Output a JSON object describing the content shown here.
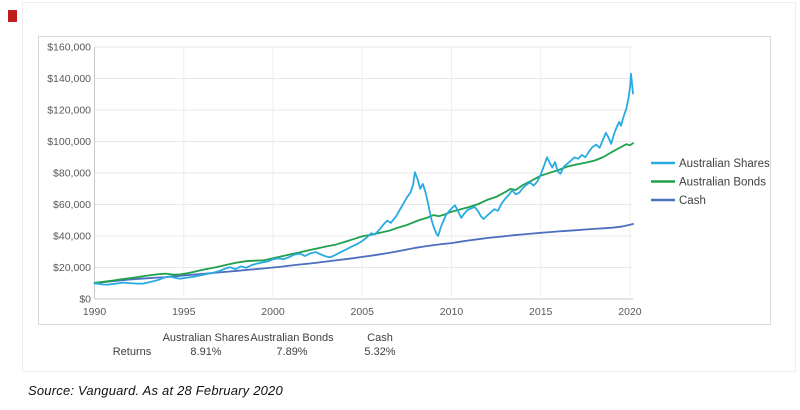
{
  "page": {
    "source_note": "Source: Vanguard. As at 28 February 2020"
  },
  "returns_table": {
    "row_label": "Returns",
    "columns": [
      {
        "label": "Australian Shares",
        "value": "8.91%"
      },
      {
        "label": "Australian Bonds",
        "value": "7.89%"
      },
      {
        "label": "Cash",
        "value": "5.32%"
      }
    ]
  },
  "chart_data": {
    "type": "line",
    "title": "",
    "xlabel": "",
    "ylabel": "",
    "xlim": [
      1990,
      2020.17
    ],
    "ylim": [
      0,
      160000
    ],
    "grid": true,
    "legend_position": "right",
    "x_ticks": [
      1990,
      1995,
      2000,
      2005,
      2010,
      2015,
      2020
    ],
    "y_ticks": [
      [
        0,
        "$0"
      ],
      [
        20000,
        "$20,000"
      ],
      [
        40000,
        "$40,000"
      ],
      [
        60000,
        "$60,000"
      ],
      [
        80000,
        "$80,000"
      ],
      [
        100000,
        "$100,000"
      ],
      [
        120000,
        "$120,000"
      ],
      [
        140000,
        "$140,000"
      ],
      [
        160000,
        "$160,000"
      ]
    ],
    "series": [
      {
        "name": "Cash",
        "color": "#4c6fbf",
        "points": [
          [
            1990.0,
            10000
          ],
          [
            1990.5,
            10700
          ],
          [
            1991.0,
            11300
          ],
          [
            1991.5,
            11900
          ],
          [
            1992.0,
            12400
          ],
          [
            1992.5,
            12800
          ],
          [
            1993.0,
            13200
          ],
          [
            1993.5,
            13600
          ],
          [
            1994.0,
            13900
          ],
          [
            1994.5,
            14400
          ],
          [
            1995.0,
            14900
          ],
          [
            1995.5,
            15400
          ],
          [
            1996.0,
            15900
          ],
          [
            1996.5,
            16400
          ],
          [
            1997.0,
            16900
          ],
          [
            1997.5,
            17400
          ],
          [
            1998.0,
            17900
          ],
          [
            1998.5,
            18400
          ],
          [
            1999.0,
            18900
          ],
          [
            1999.5,
            19400
          ],
          [
            2000.0,
            20000
          ],
          [
            2000.5,
            20600
          ],
          [
            2001.0,
            21300
          ],
          [
            2001.5,
            21900
          ],
          [
            2002.0,
            22500
          ],
          [
            2002.5,
            23100
          ],
          [
            2003.0,
            23800
          ],
          [
            2003.5,
            24500
          ],
          [
            2004.0,
            25200
          ],
          [
            2004.5,
            25900
          ],
          [
            2005.0,
            26700
          ],
          [
            2005.5,
            27500
          ],
          [
            2006.0,
            28400
          ],
          [
            2006.5,
            29300
          ],
          [
            2007.0,
            30300
          ],
          [
            2007.5,
            31400
          ],
          [
            2008.0,
            32500
          ],
          [
            2008.5,
            33400
          ],
          [
            2009.0,
            34200
          ],
          [
            2009.5,
            34900
          ],
          [
            2010.0,
            35500
          ],
          [
            2010.5,
            36400
          ],
          [
            2011.0,
            37200
          ],
          [
            2011.5,
            38000
          ],
          [
            2012.0,
            38700
          ],
          [
            2012.5,
            39300
          ],
          [
            2013.0,
            39900
          ],
          [
            2013.5,
            40500
          ],
          [
            2014.0,
            41000
          ],
          [
            2014.5,
            41500
          ],
          [
            2015.0,
            42000
          ],
          [
            2015.5,
            42500
          ],
          [
            2016.0,
            42900
          ],
          [
            2016.5,
            43300
          ],
          [
            2017.0,
            43700
          ],
          [
            2017.5,
            44100
          ],
          [
            2018.0,
            44500
          ],
          [
            2018.5,
            44900
          ],
          [
            2019.0,
            45300
          ],
          [
            2019.5,
            45900
          ],
          [
            2020.0,
            47200
          ],
          [
            2020.17,
            47600
          ]
        ]
      },
      {
        "name": "Australian Bonds",
        "color": "#1fa04a",
        "points": [
          [
            1990.0,
            10200
          ],
          [
            1990.5,
            10900
          ],
          [
            1991.0,
            11700
          ],
          [
            1991.5,
            12500
          ],
          [
            1992.0,
            13300
          ],
          [
            1992.5,
            14000
          ],
          [
            1993.0,
            14900
          ],
          [
            1993.5,
            15600
          ],
          [
            1994.0,
            16100
          ],
          [
            1994.4,
            15400
          ],
          [
            1994.8,
            15600
          ],
          [
            1995.2,
            16300
          ],
          [
            1995.6,
            17300
          ],
          [
            1996.0,
            18400
          ],
          [
            1996.4,
            19300
          ],
          [
            1996.8,
            20100
          ],
          [
            1997.2,
            21200
          ],
          [
            1997.6,
            22200
          ],
          [
            1998.0,
            23200
          ],
          [
            1998.5,
            24000
          ],
          [
            1999.0,
            24300
          ],
          [
            1999.5,
            24600
          ],
          [
            2000.0,
            25900
          ],
          [
            2000.5,
            27100
          ],
          [
            2001.0,
            28400
          ],
          [
            2001.5,
            29600
          ],
          [
            2002.0,
            30900
          ],
          [
            2002.5,
            32100
          ],
          [
            2003.0,
            33400
          ],
          [
            2003.5,
            34500
          ],
          [
            2004.0,
            36200
          ],
          [
            2004.5,
            38000
          ],
          [
            2005.0,
            39800
          ],
          [
            2005.5,
            40800
          ],
          [
            2006.0,
            42100
          ],
          [
            2006.5,
            43300
          ],
          [
            2007.0,
            45300
          ],
          [
            2007.5,
            47000
          ],
          [
            2008.0,
            49300
          ],
          [
            2008.3,
            50500
          ],
          [
            2008.6,
            51400
          ],
          [
            2009.0,
            53300
          ],
          [
            2009.3,
            52600
          ],
          [
            2009.6,
            53600
          ],
          [
            2010.0,
            55400
          ],
          [
            2010.5,
            56900
          ],
          [
            2011.0,
            58400
          ],
          [
            2011.5,
            60300
          ],
          [
            2012.0,
            62900
          ],
          [
            2012.5,
            64800
          ],
          [
            2013.0,
            67800
          ],
          [
            2013.3,
            69900
          ],
          [
            2013.6,
            69200
          ],
          [
            2014.0,
            72400
          ],
          [
            2014.5,
            75200
          ],
          [
            2015.0,
            78300
          ],
          [
            2015.5,
            80100
          ],
          [
            2016.0,
            81900
          ],
          [
            2016.5,
            84100
          ],
          [
            2017.0,
            85400
          ],
          [
            2017.5,
            86500
          ],
          [
            2018.0,
            87900
          ],
          [
            2018.5,
            90100
          ],
          [
            2019.0,
            93400
          ],
          [
            2019.4,
            95900
          ],
          [
            2019.8,
            98300
          ],
          [
            2020.0,
            97600
          ],
          [
            2020.17,
            98900
          ]
        ]
      },
      {
        "name": "Australian Shares",
        "color": "#29abe2",
        "points": [
          [
            1990.0,
            10000
          ],
          [
            1990.25,
            9600
          ],
          [
            1990.5,
            9200
          ],
          [
            1990.75,
            9050
          ],
          [
            1991.0,
            9500
          ],
          [
            1991.3,
            9900
          ],
          [
            1991.6,
            10400
          ],
          [
            1992.0,
            10100
          ],
          [
            1992.4,
            9800
          ],
          [
            1992.7,
            9700
          ],
          [
            1993.0,
            10500
          ],
          [
            1993.3,
            11300
          ],
          [
            1993.6,
            12200
          ],
          [
            1993.9,
            13600
          ],
          [
            1994.2,
            14300
          ],
          [
            1994.5,
            13500
          ],
          [
            1994.8,
            12900
          ],
          [
            1995.1,
            13400
          ],
          [
            1995.4,
            13900
          ],
          [
            1995.7,
            14400
          ],
          [
            1996.0,
            15200
          ],
          [
            1996.3,
            15900
          ],
          [
            1996.6,
            16500
          ],
          [
            1997.0,
            17800
          ],
          [
            1997.3,
            19200
          ],
          [
            1997.6,
            20200
          ],
          [
            1997.9,
            19000
          ],
          [
            1998.2,
            20700
          ],
          [
            1998.5,
            19800
          ],
          [
            1998.8,
            21500
          ],
          [
            1999.1,
            22500
          ],
          [
            1999.4,
            23200
          ],
          [
            1999.7,
            23800
          ],
          [
            2000.0,
            25200
          ],
          [
            2000.3,
            25800
          ],
          [
            2000.6,
            25300
          ],
          [
            2000.9,
            26600
          ],
          [
            2001.2,
            28200
          ],
          [
            2001.5,
            28800
          ],
          [
            2001.8,
            27300
          ],
          [
            2002.1,
            29000
          ],
          [
            2002.4,
            29800
          ],
          [
            2002.7,
            28200
          ],
          [
            2003.0,
            26900
          ],
          [
            2003.2,
            26500
          ],
          [
            2003.5,
            28000
          ],
          [
            2003.8,
            29800
          ],
          [
            2004.1,
            31500
          ],
          [
            2004.4,
            33200
          ],
          [
            2004.7,
            34800
          ],
          [
            2005.0,
            36800
          ],
          [
            2005.3,
            39500
          ],
          [
            2005.5,
            41800
          ],
          [
            2005.7,
            40900
          ],
          [
            2006.0,
            44500
          ],
          [
            2006.2,
            47500
          ],
          [
            2006.4,
            49800
          ],
          [
            2006.6,
            48300
          ],
          [
            2006.9,
            52500
          ],
          [
            2007.1,
            56500
          ],
          [
            2007.3,
            60500
          ],
          [
            2007.5,
            64500
          ],
          [
            2007.7,
            67500
          ],
          [
            2007.85,
            72500
          ],
          [
            2007.95,
            80500
          ],
          [
            2008.1,
            76000
          ],
          [
            2008.25,
            70000
          ],
          [
            2008.4,
            73000
          ],
          [
            2008.55,
            67500
          ],
          [
            2008.7,
            60000
          ],
          [
            2008.85,
            51500
          ],
          [
            2009.0,
            46000
          ],
          [
            2009.15,
            41500
          ],
          [
            2009.25,
            40000
          ],
          [
            2009.4,
            45500
          ],
          [
            2009.55,
            49500
          ],
          [
            2009.7,
            53500
          ],
          [
            2009.85,
            55500
          ],
          [
            2010.0,
            57500
          ],
          [
            2010.2,
            59500
          ],
          [
            2010.4,
            55000
          ],
          [
            2010.55,
            51500
          ],
          [
            2010.7,
            54000
          ],
          [
            2010.9,
            56500
          ],
          [
            2011.1,
            57500
          ],
          [
            2011.3,
            58500
          ],
          [
            2011.5,
            55500
          ],
          [
            2011.65,
            52500
          ],
          [
            2011.8,
            50800
          ],
          [
            2012.0,
            53000
          ],
          [
            2012.2,
            55000
          ],
          [
            2012.4,
            57000
          ],
          [
            2012.6,
            56000
          ],
          [
            2012.8,
            60500
          ],
          [
            2013.0,
            63500
          ],
          [
            2013.2,
            66000
          ],
          [
            2013.4,
            69000
          ],
          [
            2013.6,
            66500
          ],
          [
            2013.8,
            67500
          ],
          [
            2014.0,
            70500
          ],
          [
            2014.2,
            72500
          ],
          [
            2014.4,
            74000
          ],
          [
            2014.6,
            72000
          ],
          [
            2014.8,
            74500
          ],
          [
            2015.0,
            79000
          ],
          [
            2015.2,
            85000
          ],
          [
            2015.35,
            90000
          ],
          [
            2015.5,
            86500
          ],
          [
            2015.65,
            83500
          ],
          [
            2015.8,
            87000
          ],
          [
            2015.95,
            81000
          ],
          [
            2016.1,
            79500
          ],
          [
            2016.3,
            84000
          ],
          [
            2016.5,
            86000
          ],
          [
            2016.7,
            88000
          ],
          [
            2016.9,
            90000
          ],
          [
            2017.1,
            89000
          ],
          [
            2017.3,
            91500
          ],
          [
            2017.5,
            90000
          ],
          [
            2017.7,
            93500
          ],
          [
            2017.9,
            96500
          ],
          [
            2018.1,
            98000
          ],
          [
            2018.3,
            96000
          ],
          [
            2018.5,
            101500
          ],
          [
            2018.65,
            105500
          ],
          [
            2018.8,
            102500
          ],
          [
            2018.95,
            98500
          ],
          [
            2019.1,
            104500
          ],
          [
            2019.25,
            109000
          ],
          [
            2019.4,
            112500
          ],
          [
            2019.5,
            110000
          ],
          [
            2019.65,
            116000
          ],
          [
            2019.8,
            121000
          ],
          [
            2019.9,
            126500
          ],
          [
            2020.0,
            134000
          ],
          [
            2020.06,
            143000
          ],
          [
            2020.17,
            130500
          ]
        ]
      }
    ]
  },
  "colors": {
    "shares_line": "#29abe2",
    "bonds_line": "#1fa04a",
    "cash_line": "#4c6fbf",
    "axis_text": "#595959",
    "gridline": "#e8e8e8",
    "axis_line": "#c9c9c9",
    "panel_border": "#d9d9d9",
    "marker_red": "#bf1d1d"
  }
}
